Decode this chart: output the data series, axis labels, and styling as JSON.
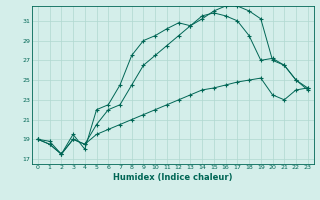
{
  "xlabel": "Humidex (Indice chaleur)",
  "background_color": "#d4eeea",
  "grid_color": "#b0d8d0",
  "line_color": "#006655",
  "xlim": [
    -0.5,
    23.5
  ],
  "ylim": [
    16.5,
    32.5
  ],
  "yticks": [
    17,
    19,
    21,
    23,
    25,
    27,
    29,
    31
  ],
  "xticks": [
    0,
    1,
    2,
    3,
    4,
    5,
    6,
    7,
    8,
    9,
    10,
    11,
    12,
    13,
    14,
    15,
    16,
    17,
    18,
    19,
    20,
    21,
    22,
    23
  ],
  "line1_x": [
    0,
    1,
    2,
    3,
    4,
    5,
    6,
    7,
    8,
    9,
    10,
    11,
    12,
    13,
    14,
    15,
    16,
    17,
    18,
    19,
    20,
    21,
    22,
    23
  ],
  "line1_y": [
    19.0,
    18.5,
    17.5,
    19.5,
    18.0,
    22.0,
    22.5,
    24.5,
    27.5,
    29.0,
    29.5,
    30.2,
    30.8,
    30.5,
    31.2,
    32.0,
    32.5,
    32.5,
    32.0,
    31.2,
    27.0,
    26.5,
    25.0,
    24.2
  ],
  "line2_x": [
    0,
    1,
    2,
    3,
    4,
    5,
    6,
    7,
    8,
    9,
    10,
    11,
    12,
    13,
    14,
    15,
    16,
    17,
    18,
    19,
    20,
    21,
    22,
    23
  ],
  "line2_y": [
    19.0,
    18.5,
    17.5,
    19.0,
    18.5,
    20.5,
    22.0,
    22.5,
    24.5,
    26.5,
    27.5,
    28.5,
    29.5,
    30.5,
    31.5,
    31.8,
    31.5,
    31.0,
    29.5,
    27.0,
    27.2,
    26.5,
    25.0,
    24.0
  ],
  "line3_x": [
    0,
    1,
    2,
    3,
    4,
    5,
    6,
    7,
    8,
    9,
    10,
    11,
    12,
    13,
    14,
    15,
    16,
    17,
    18,
    19,
    20,
    21,
    22,
    23
  ],
  "line3_y": [
    19.0,
    18.8,
    17.5,
    19.0,
    18.5,
    19.5,
    20.0,
    20.5,
    21.0,
    21.5,
    22.0,
    22.5,
    23.0,
    23.5,
    24.0,
    24.2,
    24.5,
    24.8,
    25.0,
    25.2,
    23.5,
    23.0,
    24.0,
    24.2
  ]
}
